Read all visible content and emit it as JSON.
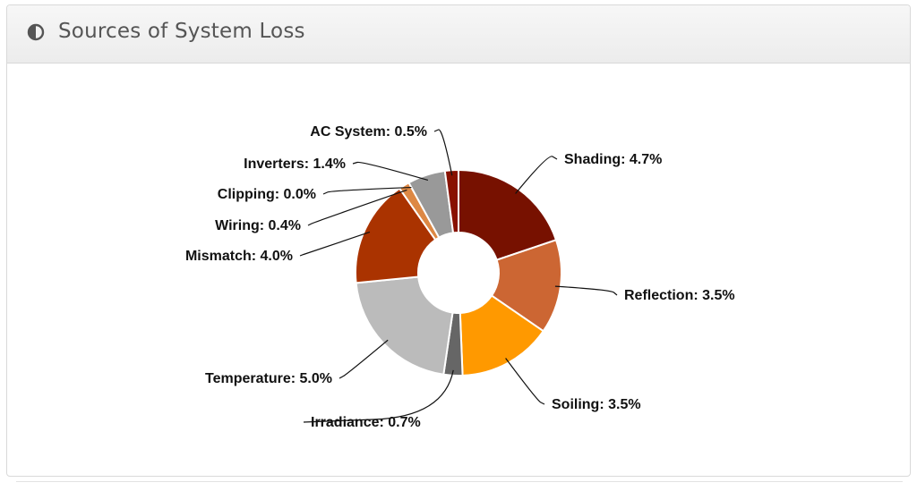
{
  "panel": {
    "title": "Sources of System Loss",
    "icon": "half-circle-icon"
  },
  "chart_data": {
    "type": "pie",
    "variant": "donut",
    "title": "",
    "start_angle_deg": 0,
    "slices": [
      {
        "name": "Shading",
        "value": 4.7,
        "label": "Shading: 4.7%",
        "color": "#771100"
      },
      {
        "name": "Reflection",
        "value": 3.5,
        "label": "Reflection: 3.5%",
        "color": "#cc6633"
      },
      {
        "name": "Soiling",
        "value": 3.5,
        "label": "Soiling: 3.5%",
        "color": "#ff9900"
      },
      {
        "name": "Irradiance",
        "value": 0.7,
        "label": "Irradiance: 0.7%",
        "color": "#666666"
      },
      {
        "name": "Temperature",
        "value": 5.0,
        "label": "Temperature: 5.0%",
        "color": "#bbbbbb"
      },
      {
        "name": "Mismatch",
        "value": 4.0,
        "label": "Mismatch: 4.0%",
        "color": "#aa3300"
      },
      {
        "name": "Wiring",
        "value": 0.4,
        "label": "Wiring: 0.4%",
        "color": "#dd8844"
      },
      {
        "name": "Clipping",
        "value": 0.0,
        "label": "Clipping: 0.0%",
        "color": "#ffbb55"
      },
      {
        "name": "Inverters",
        "value": 1.4,
        "label": "Inverters: 1.4%",
        "color": "#999999"
      },
      {
        "name": "AC System",
        "value": 0.5,
        "label": "AC System: 0.5%",
        "color": "#881100"
      }
    ],
    "legend": "none"
  }
}
